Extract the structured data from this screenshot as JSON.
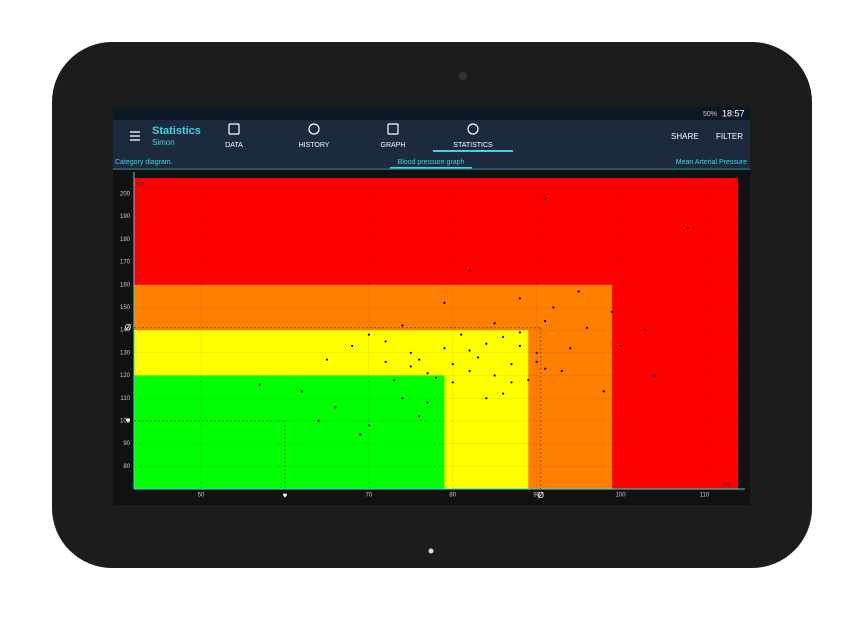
{
  "status_bar": {
    "battery": "50%",
    "time": "18:57"
  },
  "toolbar": {
    "title": "Statistics",
    "subtitle": "Simon",
    "tabs": [
      "DATA",
      "HISTORY",
      "GRAPH",
      "STATISTICS"
    ],
    "actions": [
      "SHARE",
      "FILTER"
    ]
  },
  "sub_tabs": [
    "Category diagram.",
    "Blood pressure graph",
    "Mean Arterial Pressure"
  ],
  "chart_data": {
    "type": "scatter",
    "x_label": "Dia.",
    "y_label": "Sys.",
    "xlim": [
      42,
      114
    ],
    "ylim": [
      70,
      207
    ],
    "xticks": [
      50,
      70,
      80,
      90,
      100,
      110
    ],
    "yticks": [
      80,
      90,
      100,
      110,
      120,
      130,
      140,
      150,
      160,
      170,
      180,
      190,
      200
    ],
    "grid": true,
    "color": "#000000",
    "zones": [
      {
        "color": "#ff8000",
        "xmax": 99,
        "ymax": 160
      },
      {
        "color": "#ffff00",
        "xmax": 89,
        "ymax": 140
      },
      {
        "color": "#00ff00",
        "xmax": 79,
        "ymax": 120
      }
    ],
    "markers": [
      {
        "label": "♥",
        "x": 60,
        "y": 100
      },
      {
        "label": "Ø",
        "x": 90.5,
        "y": 141
      }
    ],
    "x": [
      91,
      108,
      82,
      88,
      95,
      103,
      99,
      100,
      104,
      91,
      93,
      98,
      57,
      62,
      65,
      68,
      70,
      72,
      74,
      75,
      76,
      77,
      78,
      79,
      80,
      81,
      82,
      83,
      84,
      85,
      86,
      87,
      88,
      89,
      90,
      91,
      92,
      94,
      96,
      79,
      73,
      74,
      76,
      70,
      69,
      66,
      64,
      77,
      84,
      86,
      80,
      85,
      90,
      87,
      72,
      75,
      82,
      88
    ],
    "values": [
      198,
      185,
      166,
      154,
      157,
      140,
      148,
      133,
      120,
      123,
      122,
      113,
      116,
      113,
      127,
      133,
      138,
      135,
      142,
      130,
      127,
      121,
      119,
      132,
      125,
      138,
      131,
      128,
      134,
      120,
      137,
      125,
      133,
      118,
      130,
      144,
      150,
      132,
      141,
      152,
      118,
      110,
      102,
      98,
      94,
      106,
      100,
      108,
      110,
      112,
      117,
      143,
      126,
      117,
      126,
      124,
      122,
      139
    ]
  }
}
